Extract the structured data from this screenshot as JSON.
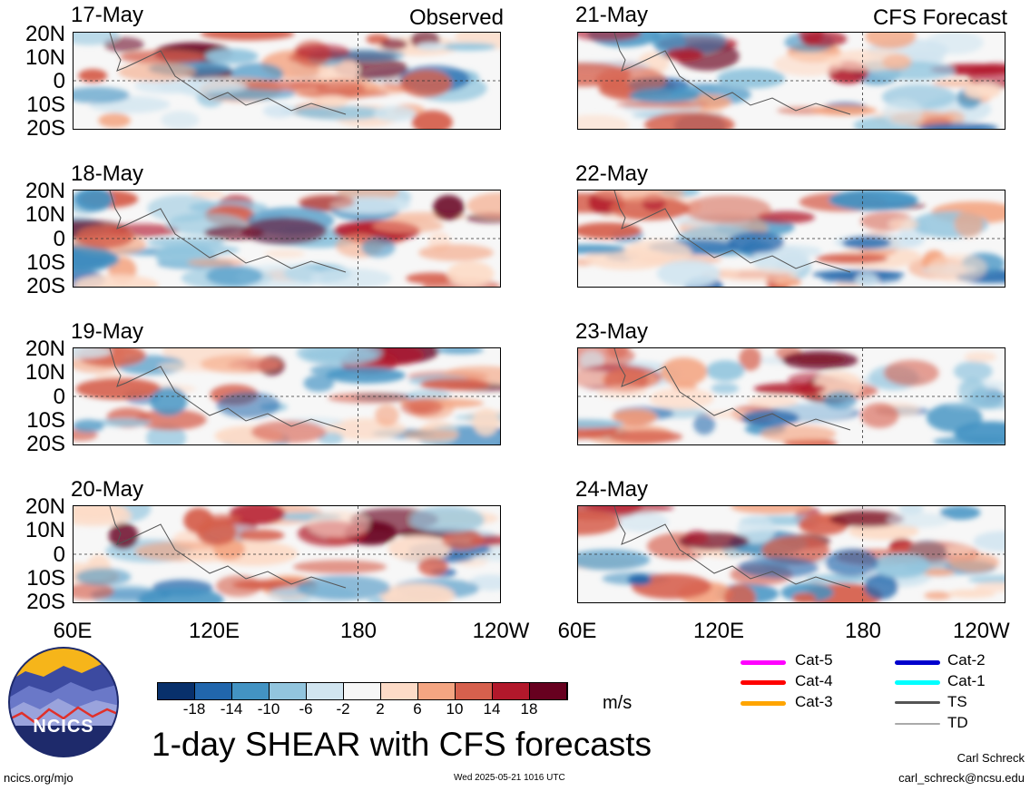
{
  "header": {
    "left_label": "Observed",
    "right_label": "CFS Forecast"
  },
  "panels": {
    "left": [
      {
        "date": "17-May"
      },
      {
        "date": "18-May"
      },
      {
        "date": "19-May"
      },
      {
        "date": "20-May"
      }
    ],
    "right": [
      {
        "date": "21-May"
      },
      {
        "date": "22-May"
      },
      {
        "date": "23-May"
      },
      {
        "date": "24-May"
      }
    ]
  },
  "axes": {
    "lat_ticks": [
      "20N",
      "10N",
      "0",
      "10S",
      "20S"
    ],
    "lon_ticks": [
      "60E",
      "120E",
      "180",
      "120W"
    ]
  },
  "colorbar": {
    "ticks": [
      "-18",
      "-14",
      "-10",
      "-6",
      "-2",
      "2",
      "6",
      "10",
      "14",
      "18"
    ],
    "colors": [
      "#08306b",
      "#2166ac",
      "#4393c3",
      "#92c5de",
      "#d1e5f0",
      "#f7f7f7",
      "#fddbc7",
      "#f4a582",
      "#d6604d",
      "#b2182b",
      "#67001f"
    ],
    "units": "m/s"
  },
  "title": "1-day SHEAR with CFS forecasts",
  "legend": {
    "items": [
      {
        "label": "Cat-5",
        "color": "#ff00ff"
      },
      {
        "label": "Cat-4",
        "color": "#ff0000"
      },
      {
        "label": "Cat-3",
        "color": "#ffa500"
      },
      {
        "label": "Cat-2",
        "color": "#0000cd"
      },
      {
        "label": "Cat-1",
        "color": "#00ffff"
      },
      {
        "label": "TS",
        "color": "#555555"
      },
      {
        "label": "TD",
        "color": "#aaaaaa"
      }
    ]
  },
  "footer": {
    "website": "ncics.org/mjo",
    "timestamp": "Wed 2025-05-21 1016 UTC",
    "author": "Carl Schreck",
    "email": "carl_schreck@ncsu.edu"
  },
  "logo": {
    "text": "NCICS",
    "colors": {
      "bg": "#1e2a6b",
      "sun": "#f6b51a",
      "ridge": "#6a78c8",
      "line": "#e0302a"
    }
  }
}
